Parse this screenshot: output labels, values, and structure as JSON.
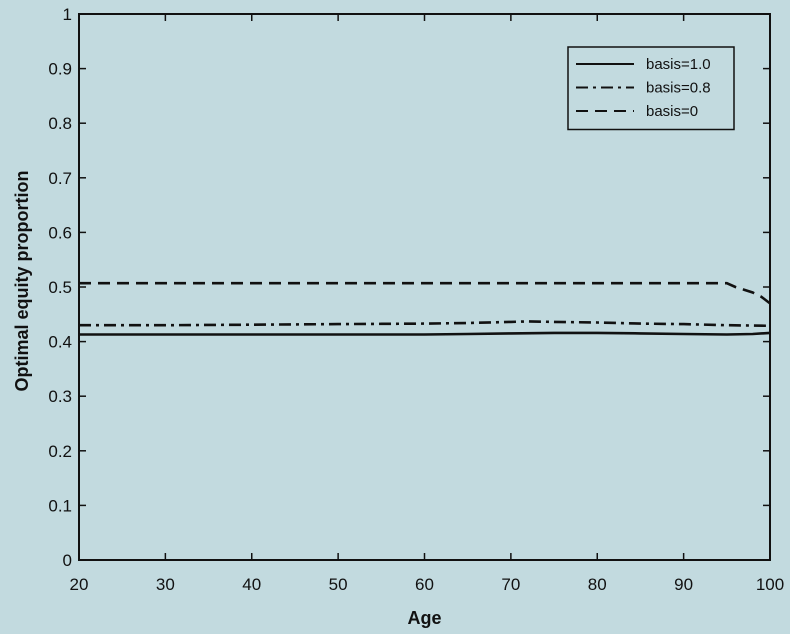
{
  "chart_data": {
    "type": "line",
    "xlabel": "Age",
    "ylabel": "Optimal equity proportion",
    "xlim": [
      20,
      100
    ],
    "ylim": [
      0,
      1
    ],
    "xticks": [
      20,
      30,
      40,
      50,
      60,
      70,
      80,
      90,
      100
    ],
    "yticks": [
      0,
      0.1,
      0.2,
      0.3,
      0.4,
      0.5,
      0.6,
      0.7,
      0.8,
      0.9,
      1
    ],
    "ytick_labels": [
      "0",
      "0.1",
      "0.2",
      "0.3",
      "0.4",
      "0.5",
      "0.6",
      "0.7",
      "0.8",
      "0.9",
      "1"
    ],
    "grid": false,
    "legend_position": "top-right",
    "background_color": "#c2dadf",
    "series": [
      {
        "name": "basis=1.0",
        "style": "solid",
        "color": "#111111",
        "x": [
          20,
          30,
          40,
          50,
          60,
          65,
          70,
          75,
          80,
          85,
          90,
          95,
          98,
          100
        ],
        "y": [
          0.413,
          0.413,
          0.413,
          0.413,
          0.413,
          0.414,
          0.415,
          0.416,
          0.416,
          0.415,
          0.414,
          0.413,
          0.414,
          0.416
        ]
      },
      {
        "name": "basis=0.8",
        "style": "dashdot",
        "color": "#111111",
        "x": [
          20,
          30,
          40,
          50,
          60,
          65,
          70,
          72,
          75,
          80,
          85,
          90,
          95,
          100
        ],
        "y": [
          0.43,
          0.43,
          0.431,
          0.432,
          0.433,
          0.434,
          0.436,
          0.437,
          0.436,
          0.435,
          0.433,
          0.432,
          0.43,
          0.429
        ]
      },
      {
        "name": "basis=0",
        "style": "dashed",
        "color": "#111111",
        "x": [
          20,
          30,
          40,
          50,
          60,
          70,
          80,
          90,
          95,
          96,
          97,
          98,
          99,
          100
        ],
        "y": [
          0.507,
          0.507,
          0.507,
          0.507,
          0.507,
          0.507,
          0.507,
          0.507,
          0.507,
          0.5,
          0.495,
          0.49,
          0.482,
          0.47
        ]
      }
    ]
  }
}
